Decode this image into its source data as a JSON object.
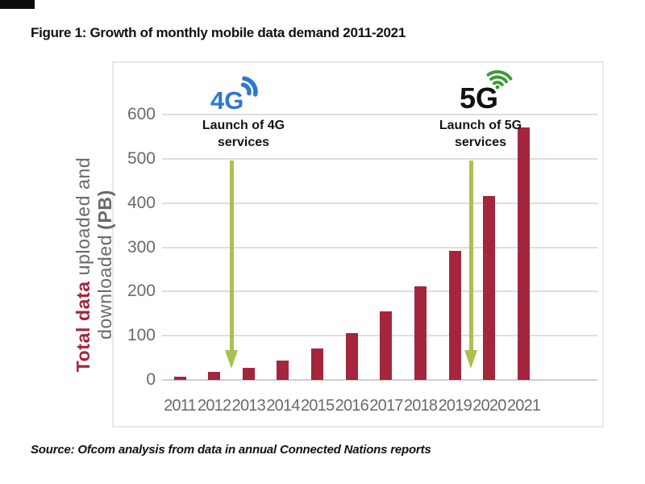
{
  "figure": {
    "title": "Figure 1: Growth of monthly mobile data demand 2011-2021",
    "source": "Source: Ofcom analysis from data in annual Connected Nations reports"
  },
  "y_axis": {
    "full_title": "Total data uploaded and downloaded (PB)",
    "title_emphasis": "Total data",
    "title_line1_rest": "uploaded and",
    "title_line2_rest": "downloaded",
    "title_unit": "(PB)"
  },
  "chart_data": {
    "type": "bar",
    "title": "Figure 1: Growth of monthly mobile data demand 2011-2021",
    "categories": [
      "2011",
      "2012",
      "2013",
      "2014",
      "2015",
      "2016",
      "2017",
      "2018",
      "2019",
      "2020",
      "2021"
    ],
    "values": [
      8,
      18,
      27,
      43,
      71,
      105,
      155,
      211,
      291,
      415,
      570
    ],
    "xlabel": "",
    "ylabel": "Total data uploaded and downloaded (PB)",
    "yticks": [
      0,
      100,
      200,
      300,
      400,
      500,
      600
    ],
    "ylim": [
      0,
      600
    ],
    "grid": true,
    "legend": "none",
    "bar_color": "#A3263C",
    "annotations": [
      {
        "line1": "Launch of 4G",
        "line2": "services",
        "icon": "4g-signal-icon",
        "arrow_color": "#A7C24E",
        "between": [
          "2012",
          "2013"
        ]
      },
      {
        "line1": "Launch of 5G",
        "line2": "services",
        "icon": "5g-signal-icon",
        "arrow_color": "#A7C24E",
        "between": [
          "2019",
          "2020"
        ]
      }
    ]
  },
  "colors": {
    "bar": "#A3263C",
    "arrow_green": "#A7C24E",
    "grid_line": "#DEDEDE",
    "axis_line": "#D0CDCD",
    "tick_text": "#6A6A6A",
    "emphasis_text": "#A3263C",
    "icon_4g_blue": "#2E77D0",
    "icon_5g_green": "#3E9B3A",
    "title_text": "#111111"
  }
}
